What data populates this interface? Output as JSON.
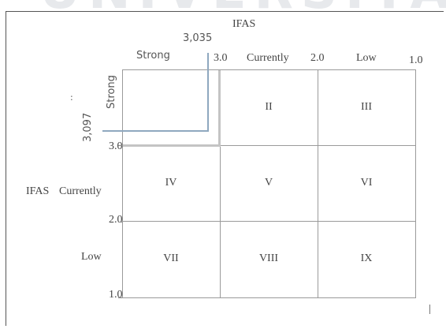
{
  "watermark": "UNIVERSITAS",
  "top_axis": {
    "title": "IFAS",
    "strong": "Strong",
    "val_3": "3.0",
    "currently": "Currently",
    "val_2": "2.0",
    "low": "Low",
    "val_1": "1.0"
  },
  "left_axis": {
    "title": "IFAS",
    "strong": "Strong",
    "val_3": "3.0",
    "currently": "Currently",
    "val_2": "2.0",
    "low": "Low",
    "val_1": "1.0"
  },
  "marker": {
    "x_value": "3,035",
    "y_value": "3,097",
    "colon": ":"
  },
  "cells": [
    "",
    "II",
    "III",
    "IV",
    "V",
    "VI",
    "VII",
    "VIII",
    "IX"
  ],
  "colors": {
    "marker": "#8fa8bf",
    "grid": "#9a9a9a",
    "shade": "#c4c4c4"
  }
}
